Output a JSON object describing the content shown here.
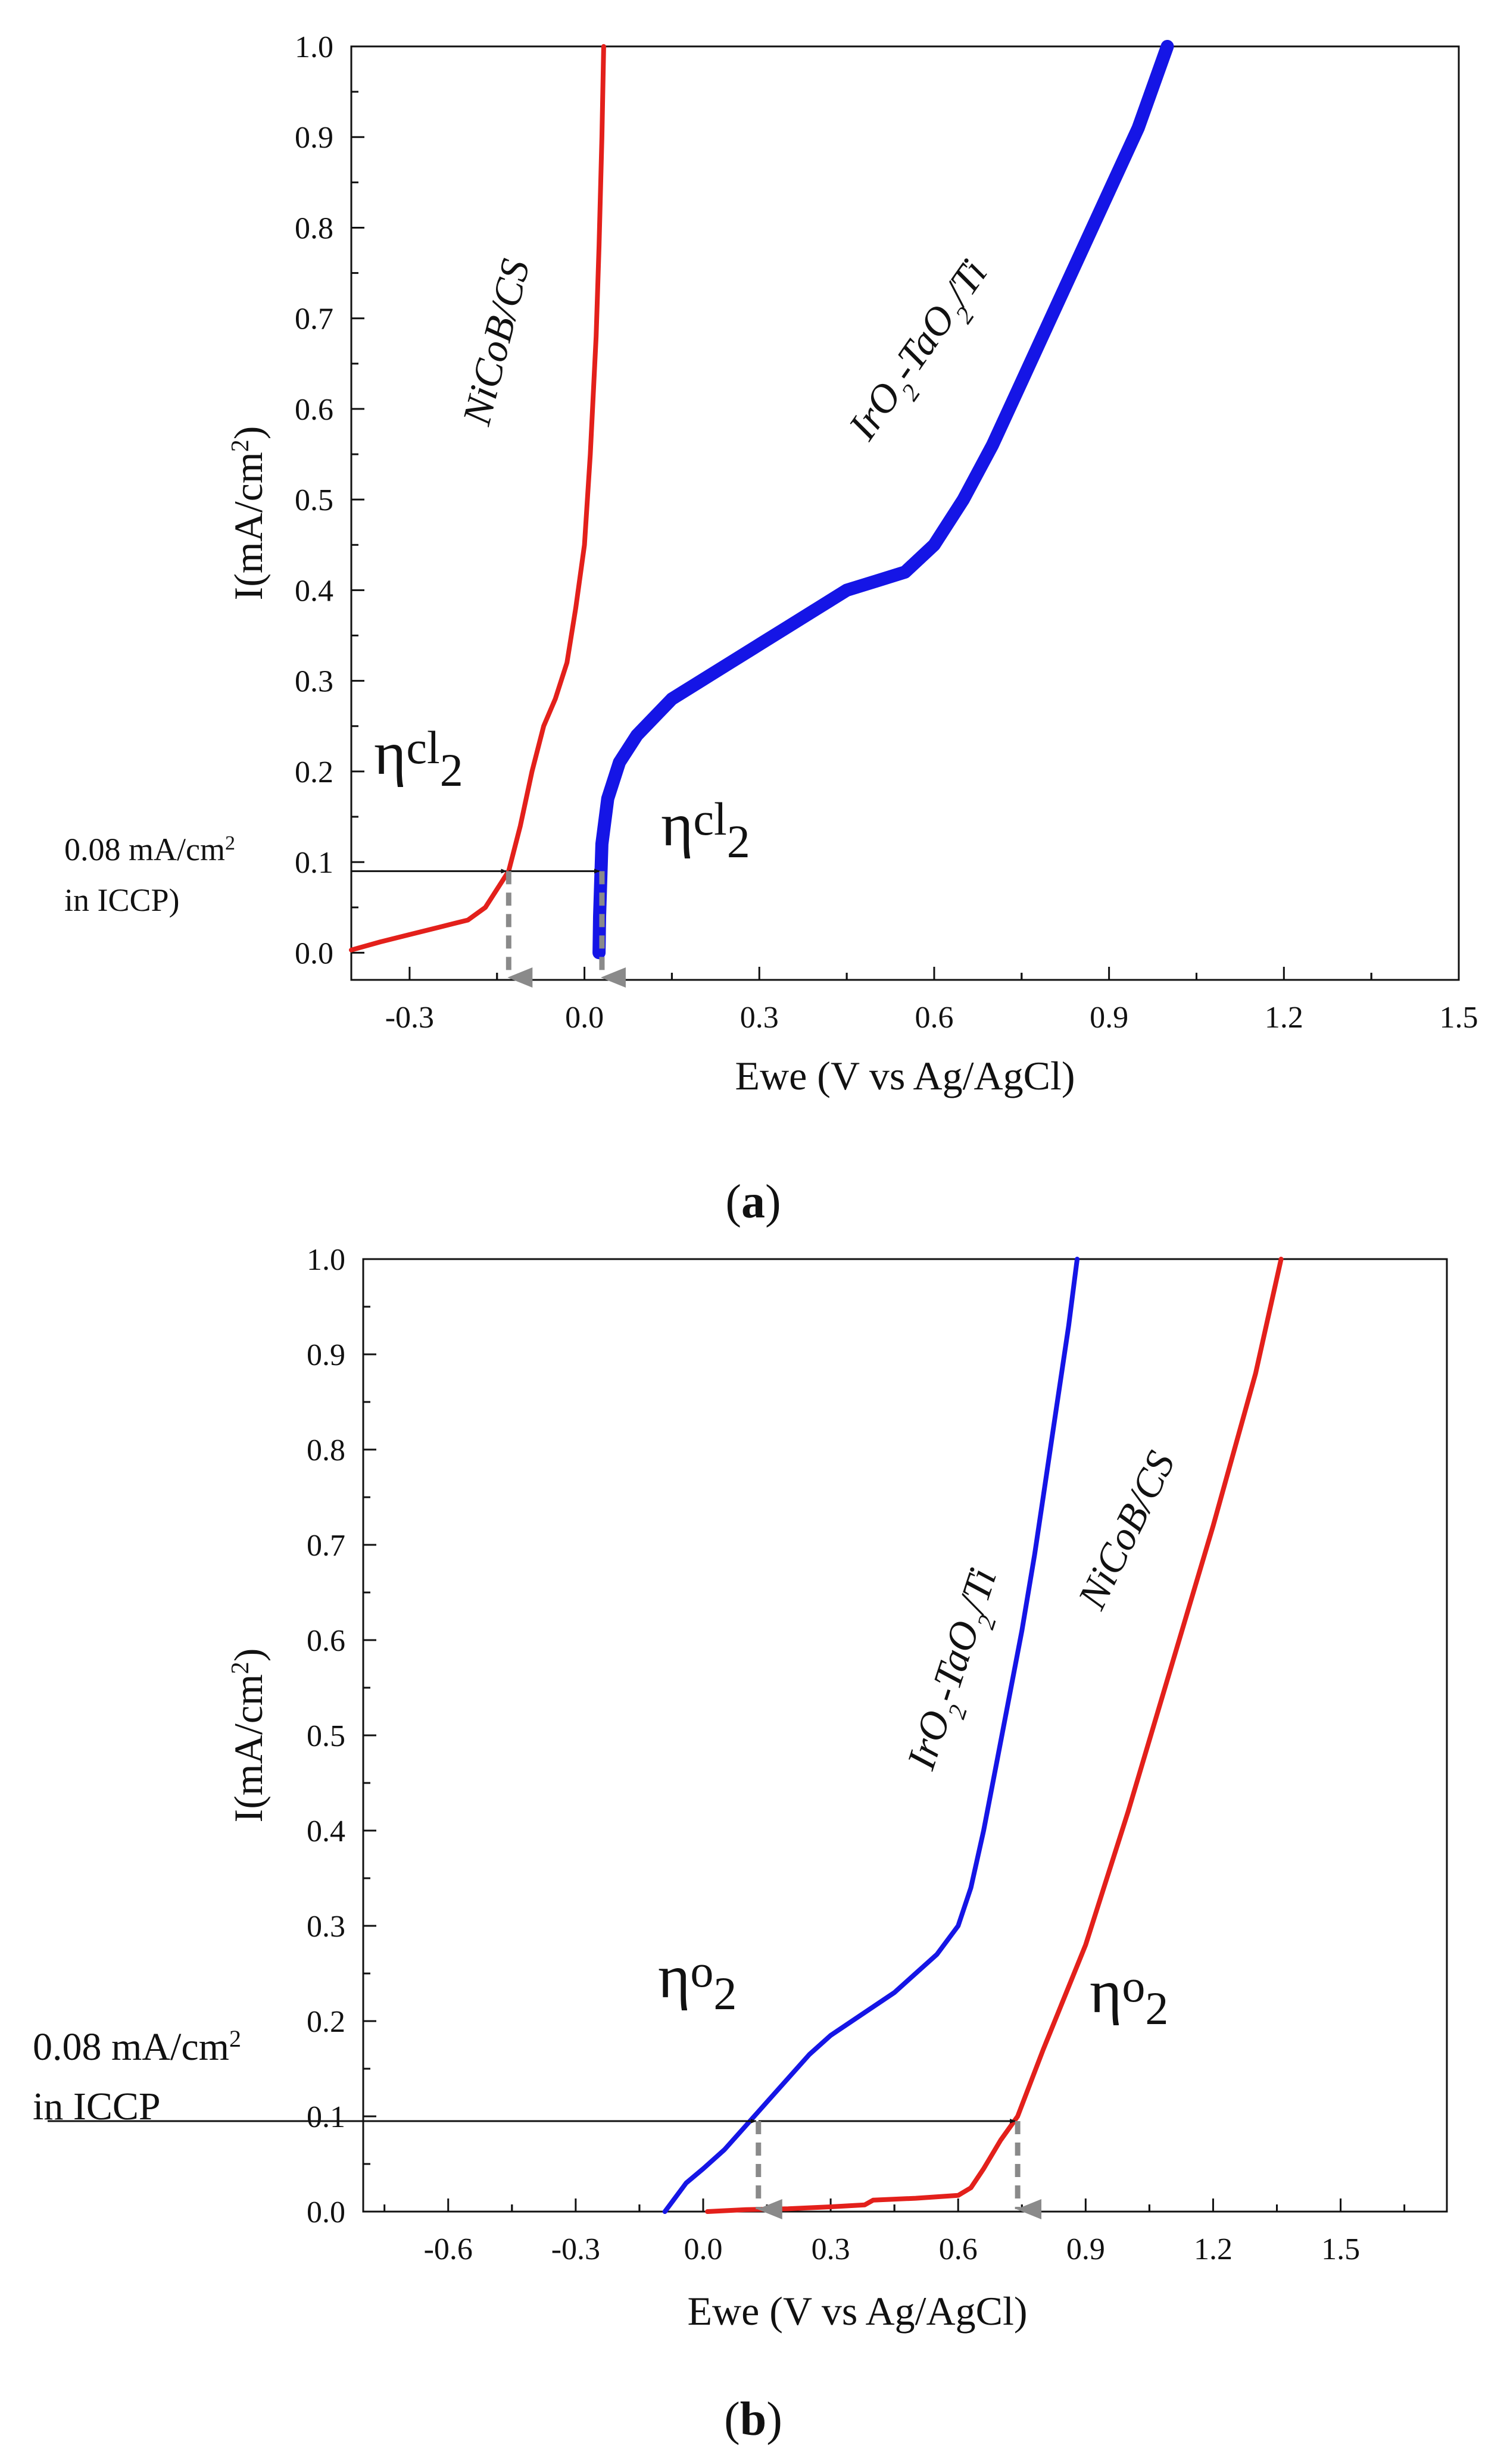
{
  "figure": {
    "background": "#ffffff"
  },
  "colors": {
    "nicob": "#e3201b",
    "iro2": "#1515e6",
    "arrow": "#444444",
    "dash": "#8a8a8a"
  },
  "chart_data": [
    {
      "panel": "a",
      "caption_open": "(",
      "caption_letter": "a",
      "caption_close": ")",
      "type": "line",
      "xlabel": "Ewe (V vs Ag/AgCl)",
      "ylabel_main": "I(mA/cm",
      "ylabel_sup": "2",
      "ylabel_close": ")",
      "xlim": [
        -0.4,
        1.5
      ],
      "ylim": [
        -0.03,
        1.0
      ],
      "xticks": [
        -0.3,
        0.0,
        0.3,
        0.6,
        0.9,
        1.2,
        1.5
      ],
      "xtick_labels": [
        "-0.3",
        "0.0",
        "0.3",
        "0.6",
        "0.9",
        "1.2",
        "1.5"
      ],
      "yticks": [
        0.0,
        0.1,
        0.2,
        0.3,
        0.4,
        0.5,
        0.6,
        0.7,
        0.8,
        0.9,
        1.0
      ],
      "ytick_labels": [
        "0.0",
        "0.1",
        "0.2",
        "0.3",
        "0.4",
        "0.5",
        "0.6",
        "0.7",
        "0.8",
        "0.9",
        "1.0"
      ],
      "series": [
        {
          "name": "NiCoB/CS",
          "label_parts": [
            "NiCoB/CS"
          ],
          "color_key": "nicob",
          "x": [
            -0.4,
            -0.35,
            -0.3,
            -0.25,
            -0.2,
            -0.17,
            -0.15,
            -0.13,
            -0.11,
            -0.09,
            -0.07,
            -0.05,
            -0.03,
            -0.015,
            0.0,
            0.01,
            0.02,
            0.025,
            0.03,
            0.033
          ],
          "y": [
            0.003,
            0.012,
            0.02,
            0.028,
            0.036,
            0.05,
            0.07,
            0.09,
            0.14,
            0.2,
            0.25,
            0.28,
            0.32,
            0.38,
            0.45,
            0.55,
            0.68,
            0.78,
            0.9,
            1.0
          ]
        },
        {
          "name": "IrO2-TaO2/Ti",
          "label_parts": [
            "IrO",
            "2",
            "-TaO",
            "2",
            "/Ti"
          ],
          "color_key": "iro2",
          "thick": true,
          "x": [
            0.025,
            0.026,
            0.03,
            0.04,
            0.06,
            0.09,
            0.12,
            0.15,
            0.2,
            0.25,
            0.3,
            0.35,
            0.4,
            0.45,
            0.5,
            0.55,
            0.6,
            0.65,
            0.7,
            0.75,
            0.8,
            0.85,
            0.9,
            0.95,
            1.0
          ],
          "y": [
            0.0,
            0.04,
            0.12,
            0.17,
            0.21,
            0.24,
            0.26,
            0.28,
            0.3,
            0.32,
            0.34,
            0.36,
            0.38,
            0.4,
            0.41,
            0.42,
            0.45,
            0.5,
            0.56,
            0.63,
            0.7,
            0.77,
            0.84,
            0.91,
            1.0
          ]
        }
      ],
      "annotations": {
        "current_line1": "0.08 mA/cm",
        "current_sup": "2",
        "current_line2": "in ICCP)",
        "arrow_y": 0.09,
        "drop_x": [
          -0.13,
          0.03
        ],
        "eta_left": {
          "eta": "η",
          "sub": "cl",
          "subsub": "2"
        },
        "eta_right": {
          "eta": "η",
          "sub": "cl",
          "subsub": "2"
        }
      }
    },
    {
      "panel": "b",
      "caption_open": "(",
      "caption_letter": "b",
      "caption_close": ")",
      "type": "line",
      "xlabel": "Ewe (V vs Ag/AgCl)",
      "ylabel_main": "I(mA/cm",
      "ylabel_sup": "2",
      "ylabel_close": ")",
      "xlim": [
        -0.8,
        1.75
      ],
      "ylim": [
        0.0,
        1.0
      ],
      "xticks": [
        -0.6,
        -0.3,
        0.0,
        0.3,
        0.6,
        0.9,
        1.2,
        1.5
      ],
      "xtick_labels": [
        "-0.6",
        "-0.3",
        "0.0",
        "0.3",
        "0.6",
        "0.9",
        "1.2",
        "1.5"
      ],
      "yticks": [
        0.0,
        0.1,
        0.2,
        0.3,
        0.4,
        0.5,
        0.6,
        0.7,
        0.8,
        0.9,
        1.0
      ],
      "ytick_labels": [
        "0.0",
        "0.1",
        "0.2",
        "0.3",
        "0.4",
        "0.5",
        "0.6",
        "0.7",
        "0.8",
        "0.9",
        "1.0"
      ],
      "series": [
        {
          "name": "IrO2-TaO2/Ti",
          "label_parts": [
            "IrO",
            "2",
            "-TaO",
            "2",
            "/Ti"
          ],
          "color_key": "iro2",
          "x": [
            -0.09,
            -0.07,
            -0.04,
            0.0,
            0.05,
            0.1,
            0.15,
            0.2,
            0.25,
            0.3,
            0.35,
            0.4,
            0.45,
            0.5,
            0.55,
            0.6,
            0.63,
            0.66,
            0.69,
            0.72,
            0.75,
            0.78,
            0.8,
            0.82,
            0.84,
            0.86,
            0.88
          ],
          "y": [
            0.0,
            0.012,
            0.03,
            0.045,
            0.065,
            0.09,
            0.115,
            0.14,
            0.165,
            0.185,
            0.2,
            0.215,
            0.23,
            0.25,
            0.27,
            0.3,
            0.34,
            0.4,
            0.47,
            0.54,
            0.61,
            0.69,
            0.75,
            0.81,
            0.87,
            0.93,
            1.0
          ]
        },
        {
          "name": "NiCoB/CS",
          "label_parts": [
            "NiCoB/CS"
          ],
          "color_key": "nicob",
          "x": [
            0.01,
            0.1,
            0.2,
            0.3,
            0.38,
            0.4,
            0.5,
            0.6,
            0.63,
            0.66,
            0.7,
            0.74,
            0.8,
            0.9,
            1.0,
            1.1,
            1.2,
            1.3,
            1.36
          ],
          "y": [
            0.0,
            0.002,
            0.003,
            0.005,
            0.007,
            0.012,
            0.014,
            0.017,
            0.025,
            0.045,
            0.075,
            0.1,
            0.17,
            0.28,
            0.42,
            0.57,
            0.72,
            0.88,
            1.0
          ]
        }
      ],
      "annotations": {
        "current_line1": "0.08 mA/cm",
        "current_sup": "2",
        "current_line2": "in ICCP",
        "arrow_y": 0.095,
        "drop_x": [
          0.13,
          0.74
        ],
        "eta_left": {
          "eta": "η",
          "sub": "o",
          "subsub": "2"
        },
        "eta_right": {
          "eta": "η",
          "sub": "o",
          "subsub": "2"
        }
      }
    }
  ]
}
